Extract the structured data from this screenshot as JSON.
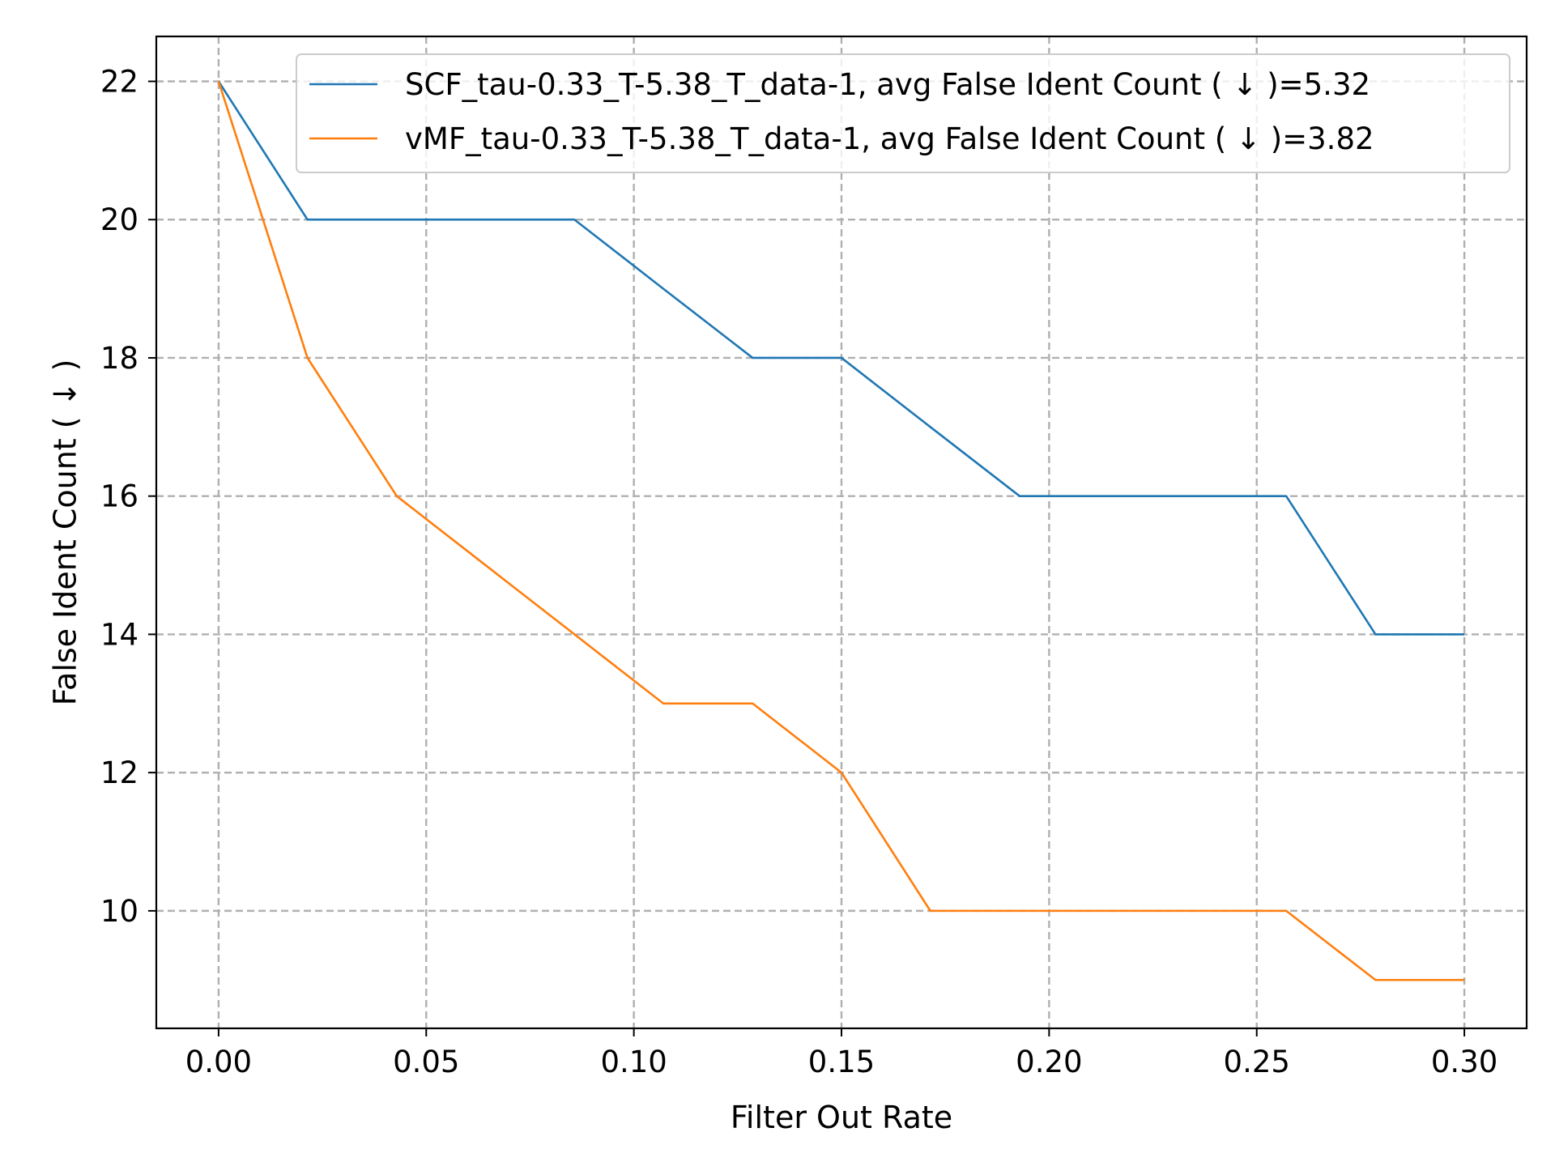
{
  "chart_data": {
    "type": "line",
    "title": "",
    "xlabel": "Filter Out Rate",
    "ylabel": "False Ident Count ( ↓ )",
    "xlim": [
      -0.015,
      0.315
    ],
    "ylim": [
      8.3,
      22.65
    ],
    "xticks": [
      0.0,
      0.05,
      0.1,
      0.15,
      0.2,
      0.25,
      0.3
    ],
    "xtick_labels": [
      "0.00",
      "0.05",
      "0.10",
      "0.15",
      "0.20",
      "0.25",
      "0.30"
    ],
    "yticks": [
      10,
      12,
      14,
      16,
      18,
      20,
      22
    ],
    "ytick_labels": [
      "10",
      "12",
      "14",
      "16",
      "18",
      "20",
      "22"
    ],
    "grid": true,
    "legend_position": "top-right",
    "series": [
      {
        "name": "SCF_tau-0.33_T-5.38_T_data-1, avg False Ident Count ( ↓ )=5.32",
        "color": "#1f77b4",
        "x": [
          0.0,
          0.0214,
          0.0429,
          0.0643,
          0.0857,
          0.1071,
          0.1286,
          0.15,
          0.1714,
          0.1929,
          0.2143,
          0.2357,
          0.2571,
          0.2786,
          0.3
        ],
        "y": [
          22,
          20,
          20,
          20,
          20,
          19,
          18,
          18,
          17,
          16,
          16,
          16,
          16,
          14,
          14
        ]
      },
      {
        "name": "vMF_tau-0.33_T-5.38_T_data-1, avg False Ident Count ( ↓ )=3.82",
        "color": "#ff7f0e",
        "x": [
          0.0,
          0.0214,
          0.0429,
          0.0643,
          0.0857,
          0.1071,
          0.1286,
          0.15,
          0.1714,
          0.1929,
          0.2143,
          0.2357,
          0.2571,
          0.2786,
          0.3
        ],
        "y": [
          22,
          18,
          16,
          15,
          14,
          13,
          13,
          12,
          10,
          10,
          10,
          10,
          10,
          9,
          9
        ]
      }
    ]
  }
}
